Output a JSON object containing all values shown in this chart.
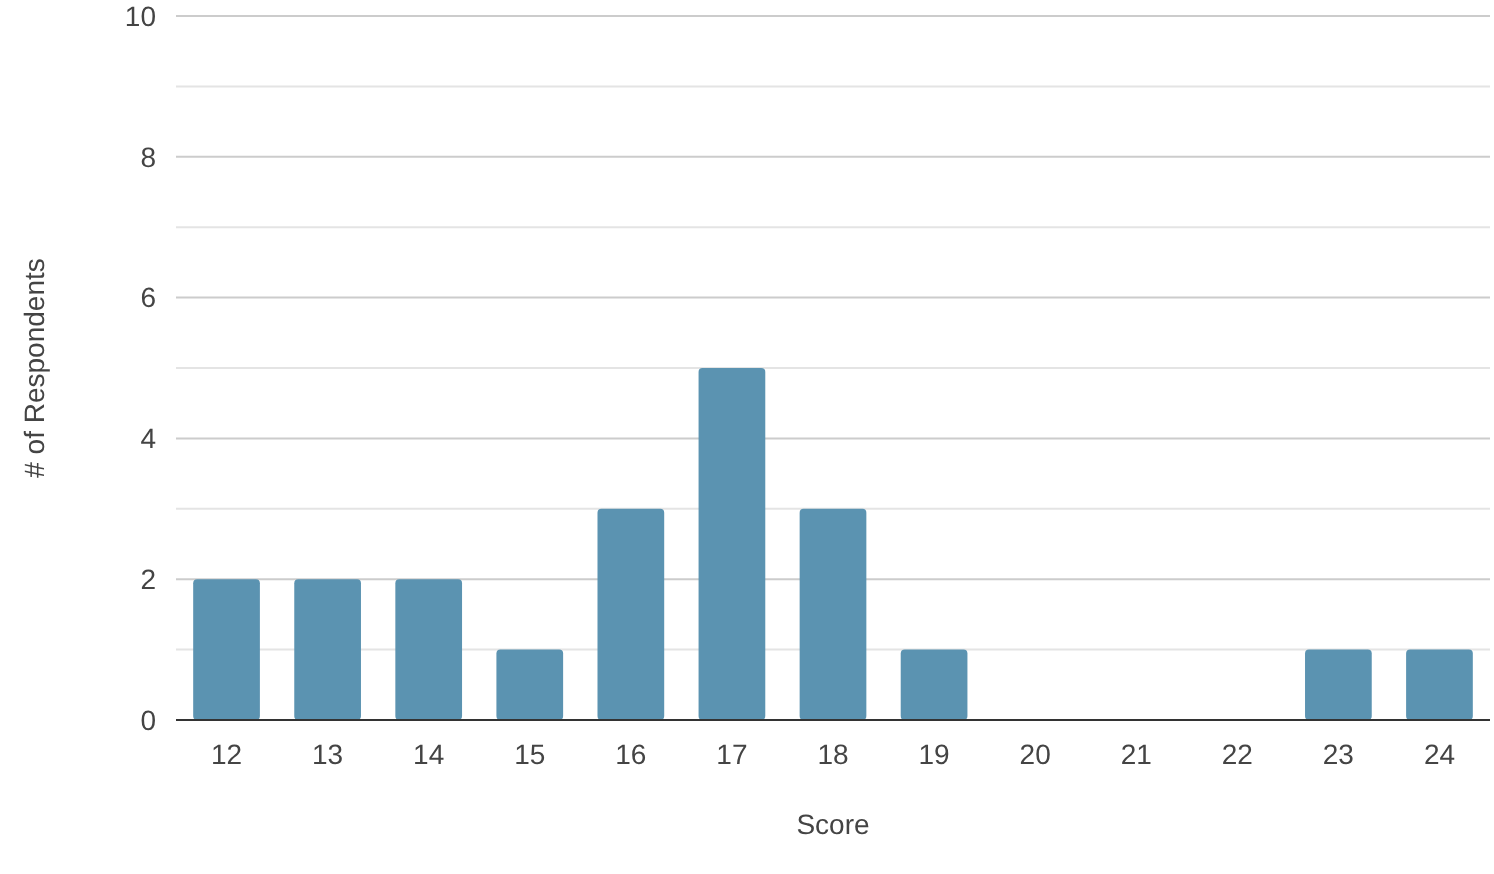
{
  "chart_data": {
    "type": "bar",
    "xlabel": "Score",
    "ylabel": "# of Respondents",
    "categories": [
      "12",
      "13",
      "14",
      "15",
      "16",
      "17",
      "18",
      "19",
      "20",
      "21",
      "22",
      "23",
      "24"
    ],
    "values": [
      2,
      2,
      2,
      1,
      3,
      5,
      3,
      1,
      0,
      0,
      0,
      1,
      1
    ],
    "color": "#5b93b1",
    "ylim": [
      0,
      10
    ],
    "yticks": [
      0,
      {
        "value": 1,
        "label": null
      },
      2,
      {
        "value": 3,
        "label": null
      },
      4,
      {
        "value": 5,
        "label": null
      },
      6,
      {
        "value": 7,
        "label": null
      },
      8,
      {
        "value": 9,
        "label": null
      },
      10
    ],
    "grid": "y"
  }
}
